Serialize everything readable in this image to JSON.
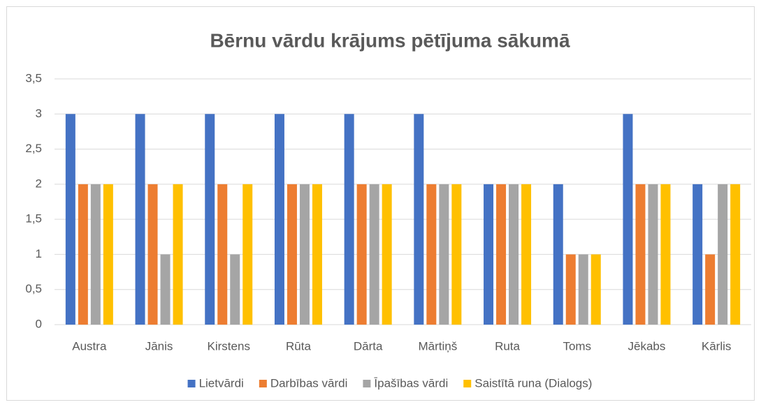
{
  "chart_data": {
    "type": "bar",
    "title": "Bērnu vārdu krājums pētījuma sākumā",
    "categories": [
      "Austra",
      "Jānis",
      "Kirstens",
      "Rūta",
      "Dārta",
      "Mārtiņš",
      "Ruta",
      "Toms",
      "Jēkabs",
      "Kārlis"
    ],
    "series": [
      {
        "name": "Lietvārdi",
        "color": "#4472c4",
        "values": [
          3,
          3,
          3,
          3,
          3,
          3,
          2,
          2,
          3,
          2
        ]
      },
      {
        "name": "Darbības vārdi",
        "color": "#ed7d31",
        "values": [
          2,
          2,
          2,
          2,
          2,
          2,
          2,
          1,
          2,
          1
        ]
      },
      {
        "name": "Īpašības vārdi",
        "color": "#a5a5a5",
        "values": [
          2,
          1,
          1,
          2,
          2,
          2,
          2,
          1,
          2,
          2
        ]
      },
      {
        "name": "Saistītā runa  (Dialogs)",
        "color": "#ffc000",
        "values": [
          2,
          2,
          2,
          2,
          2,
          2,
          2,
          1,
          2,
          2
        ]
      }
    ],
    "ylim": [
      0,
      3.5
    ],
    "yticks": [
      0,
      {
        "value": 0.5,
        "label": "0,5"
      },
      1,
      {
        "value": 1.5,
        "label": "1,5"
      },
      2,
      {
        "value": 2.5,
        "label": "2,5"
      },
      3,
      {
        "value": 3.5,
        "label": "3,5"
      }
    ],
    "grid": true,
    "legend": "bottom"
  }
}
